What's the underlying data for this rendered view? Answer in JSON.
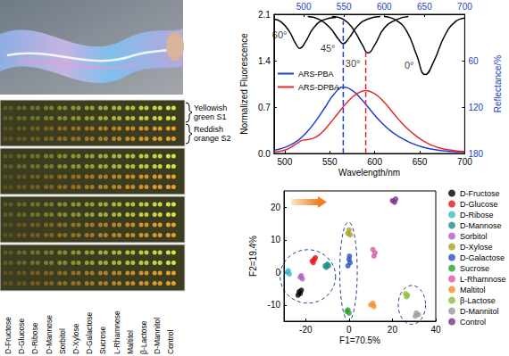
{
  "photo_panel": {
    "row_labels": [
      "Yellowish green S1",
      "Reddish orange S2"
    ],
    "sample_labels": [
      "D-Fructose",
      "D-Glucose",
      "D-Ribose",
      "D-Mannose",
      "Sorbitol",
      "D-Xylose",
      "D-Galactose",
      "Sucrose",
      "L-Rhamnose",
      "Maltitol",
      "β-Lactose",
      "D-Mannitol",
      "Control"
    ]
  },
  "chart_data": [
    {
      "type": "line",
      "xlabel": "Wavelength/nm",
      "ylabel": "Normalized Fluorescence",
      "y2label": "Reflectance/%",
      "xlim": [
        488,
        700
      ],
      "xticks": [
        500,
        550,
        600,
        650,
        700
      ],
      "x2lim": [
        463,
        700
      ],
      "x2ticks": [
        500,
        550,
        600,
        650,
        700
      ],
      "ylim": [
        0,
        2.1
      ],
      "yticks": [
        {
          "value": 0,
          "label": "0.0"
        },
        0.7,
        1.4,
        2.1
      ],
      "y2lim": [
        180,
        0
      ],
      "y2ticks": [
        60,
        120,
        180
      ],
      "legend": "upper left",
      "grid": false,
      "series": [
        {
          "name": "ARS-PBA",
          "color": "#1f3fd6",
          "x": [
            488,
            495,
            505,
            515,
            525,
            535,
            545,
            555,
            565,
            575,
            585,
            595,
            605,
            615,
            625,
            640,
            655,
            670,
            685,
            700
          ],
          "values": [
            0.05,
            0.07,
            0.12,
            0.2,
            0.33,
            0.5,
            0.7,
            0.9,
            1.0,
            0.95,
            0.82,
            0.66,
            0.5,
            0.37,
            0.27,
            0.16,
            0.09,
            0.05,
            0.03,
            0.02
          ]
        },
        {
          "name": "ARS-DPBA",
          "color": "#e8262a",
          "x": [
            488,
            500,
            510,
            520,
            530,
            540,
            550,
            560,
            570,
            580,
            590,
            600,
            610,
            620,
            630,
            640,
            655,
            670,
            685,
            700
          ],
          "values": [
            0.02,
            0.05,
            0.12,
            0.2,
            0.22,
            0.3,
            0.45,
            0.62,
            0.78,
            0.9,
            0.95,
            0.9,
            0.78,
            0.62,
            0.46,
            0.33,
            0.18,
            0.09,
            0.05,
            0.03
          ]
        },
        {
          "color": "#000000",
          "axis": "y2",
          "x": [
            463,
            472,
            482,
            490,
            495,
            502,
            512,
            525,
            540
          ],
          "values": [
            6,
            10,
            22,
            38,
            44,
            36,
            18,
            7,
            4
          ]
        },
        {
          "color": "#000000",
          "axis": "y2",
          "x": [
            505,
            520,
            533,
            543,
            549,
            556,
            567,
            580,
            595
          ],
          "values": [
            3,
            7,
            18,
            32,
            38,
            31,
            15,
            6,
            3
          ]
        },
        {
          "color": "#000000",
          "axis": "y2",
          "x": [
            535,
            550,
            562,
            573,
            580,
            588,
            600,
            615,
            630
          ],
          "values": [
            3,
            7,
            20,
            40,
            50,
            40,
            18,
            7,
            3
          ]
        },
        {
          "color": "#000000",
          "axis": "y2",
          "x": [
            600,
            615,
            628,
            640,
            651,
            662,
            675,
            688,
            700
          ],
          "values": [
            3,
            8,
            22,
            52,
            78,
            60,
            28,
            10,
            5
          ]
        }
      ],
      "vlines": [
        {
          "x": 565,
          "y": [
            0,
            2.0
          ],
          "color": "#1f3fd6",
          "line_style": "dashed"
        },
        {
          "x": 590,
          "y": [
            0,
            1.55
          ],
          "color": "#e8262a",
          "line_style": "dashed"
        }
      ],
      "annotations": [
        {
          "text": "60°",
          "x": 470,
          "y": 26,
          "axis": "y2"
        },
        {
          "text": "45°",
          "x": 530,
          "y": 44,
          "axis": "y2"
        },
        {
          "text": "30°",
          "x": 561,
          "y": 64,
          "axis": "y2"
        },
        {
          "text": "0°",
          "x": 631,
          "y": 66,
          "axis": "y2"
        }
      ]
    },
    {
      "type": "scatter",
      "xlabel": "F1=70.5%",
      "ylabel": "F2=19.4%",
      "xlim": [
        -30,
        40
      ],
      "xticks": [
        -20,
        0,
        20,
        40
      ],
      "ylim": [
        -15,
        25
      ],
      "yticks": [
        -10,
        0,
        10,
        20
      ],
      "legend": "right",
      "grid": false,
      "series": [
        {
          "name": "D-Fructose",
          "color": "#000000",
          "x": [
            -23,
            -22,
            -23.5,
            -22.5
          ],
          "values": [
            -6,
            -5.5,
            -7,
            -6.5
          ]
        },
        {
          "name": "D-Glucose",
          "color": "#e41a1c",
          "x": [
            -17,
            -16,
            -16.5,
            -15.5
          ],
          "values": [
            3.5,
            4,
            3,
            4.5
          ]
        },
        {
          "name": "D-Ribose",
          "color": "#3bb9d0",
          "x": [
            -28,
            -27.5,
            -28.5
          ],
          "values": [
            0.5,
            -0.5,
            0
          ]
        },
        {
          "name": "D-Mannose",
          "color": "#1c8c8c",
          "x": [
            -11,
            -10,
            -10.5,
            -9.5
          ],
          "values": [
            2,
            2.5,
            1.5,
            2
          ]
        },
        {
          "name": "Sorbitol",
          "color": "#b45cc8",
          "x": [
            -22,
            -21.5,
            -22.5
          ],
          "values": [
            -1,
            -2,
            -1.5
          ]
        },
        {
          "name": "D-Xylose",
          "color": "#a6a01e",
          "x": [
            0,
            -0.5,
            0.5
          ],
          "values": [
            13,
            12,
            11.5
          ]
        },
        {
          "name": "D-Galactose",
          "color": "#2f4fbf",
          "x": [
            0,
            -0.5,
            0.5,
            0.2
          ],
          "values": [
            4,
            2,
            3,
            5
          ]
        },
        {
          "name": "Sucrose",
          "color": "#2ca02c",
          "x": [
            -1,
            0,
            -0.5
          ],
          "values": [
            -12,
            -12.5,
            -11.5
          ]
        },
        {
          "name": "L-Rhamnose",
          "color": "#d45aa8",
          "x": [
            11,
            12,
            11.5
          ],
          "values": [
            7,
            6,
            5
          ]
        },
        {
          "name": "Maltitol",
          "color": "#f28e2b",
          "x": [
            10,
            11,
            11.5
          ],
          "values": [
            -10,
            -9.5,
            -10.5
          ]
        },
        {
          "name": "β-Lactose",
          "color": "#8cbf3f",
          "x": [
            26,
            27,
            26.5
          ],
          "values": [
            -6.5,
            -7,
            -7.5
          ]
        },
        {
          "name": "D-Mannitol",
          "color": "#9a9a9a",
          "x": [
            31,
            32,
            30.5
          ],
          "values": [
            -12.5,
            -13,
            -13.5
          ]
        },
        {
          "name": "Control",
          "color": "#7b2d8e",
          "x": [
            20,
            21,
            21.5
          ],
          "values": [
            22,
            21.5,
            22.5
          ]
        }
      ]
    }
  ]
}
